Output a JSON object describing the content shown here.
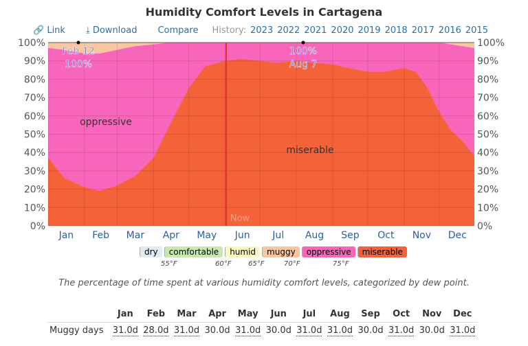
{
  "title": "Humidity Comfort Levels in Cartagena",
  "toolbar": {
    "link": "Link",
    "download": "Download",
    "compare": "Compare",
    "history": "History:",
    "years": [
      "2023",
      "2022",
      "2021",
      "2020",
      "2019",
      "2018",
      "2017",
      "2016",
      "2015"
    ]
  },
  "chart_data": {
    "type": "area",
    "title": "Humidity Comfort Levels in Cartagena",
    "yticks": [
      "0%",
      "10%",
      "20%",
      "30%",
      "40%",
      "50%",
      "60%",
      "70%",
      "80%",
      "90%",
      "100%"
    ],
    "ylim": [
      0,
      100
    ],
    "months": [
      "Jan",
      "Feb",
      "Mar",
      "Apr",
      "May",
      "Jun",
      "Jul",
      "Aug",
      "Sep",
      "Oct",
      "Nov",
      "Dec"
    ],
    "x_day_of_year": [
      1,
      15,
      32,
      45,
      60,
      75,
      91,
      105,
      121,
      135,
      152,
      166,
      182,
      196,
      213,
      227,
      244,
      258,
      274,
      288,
      305,
      315,
      325,
      335,
      345,
      355,
      365
    ],
    "series": [
      {
        "name": "miserable",
        "color": "#f4623a",
        "values": [
          37,
          26,
          21,
          19,
          22,
          27,
          37,
          55,
          75,
          87,
          90,
          91,
          90,
          89,
          90,
          89,
          88,
          86,
          84,
          84,
          86,
          84,
          75,
          62,
          52,
          46,
          38
        ]
      },
      {
        "name": "oppressive",
        "color": "#f766ba",
        "values": [
          97,
          96,
          94,
          94,
          96,
          98,
          99,
          100,
          100,
          100,
          100,
          100,
          100,
          100,
          100,
          100,
          100,
          100,
          100,
          100,
          100,
          100,
          100,
          100,
          99,
          98,
          97
        ]
      },
      {
        "name": "muggy",
        "color": "#f8c7a2",
        "values": [
          100,
          100,
          100,
          100,
          100,
          100,
          100,
          100,
          100,
          100,
          100,
          100,
          100,
          100,
          100,
          100,
          100,
          100,
          100,
          100,
          100,
          100,
          100,
          100,
          100,
          100,
          100
        ]
      }
    ],
    "annotations": [
      {
        "label": "Feb 12",
        "value": "100%"
      },
      {
        "label": "Aug 7",
        "value": "100%"
      }
    ],
    "region_labels": [
      "oppressive",
      "miserable"
    ],
    "now_label": "Now"
  },
  "legend": [
    {
      "label": "dry",
      "color": "#e3ecf3"
    },
    {
      "label": "comfortable",
      "color": "#c6e9b0"
    },
    {
      "label": "humid",
      "color": "#fdf7c3"
    },
    {
      "label": "muggy",
      "color": "#f8c7a2"
    },
    {
      "label": "oppressive",
      "color": "#f766ba"
    },
    {
      "label": "miserable",
      "color": "#f4623a"
    }
  ],
  "thresholds": [
    "55°F",
    "60°F",
    "65°F",
    "70°F",
    "75°F"
  ],
  "caption": "The percentage of time spent at various humidity comfort levels, categorized by dew point.",
  "table": {
    "row_label": "Muggy days",
    "values": [
      "31.0d",
      "28.0d",
      "31.0d",
      "30.0d",
      "31.0d",
      "30.0d",
      "31.0d",
      "31.0d",
      "30.0d",
      "31.0d",
      "30.0d",
      "31.0d"
    ]
  }
}
